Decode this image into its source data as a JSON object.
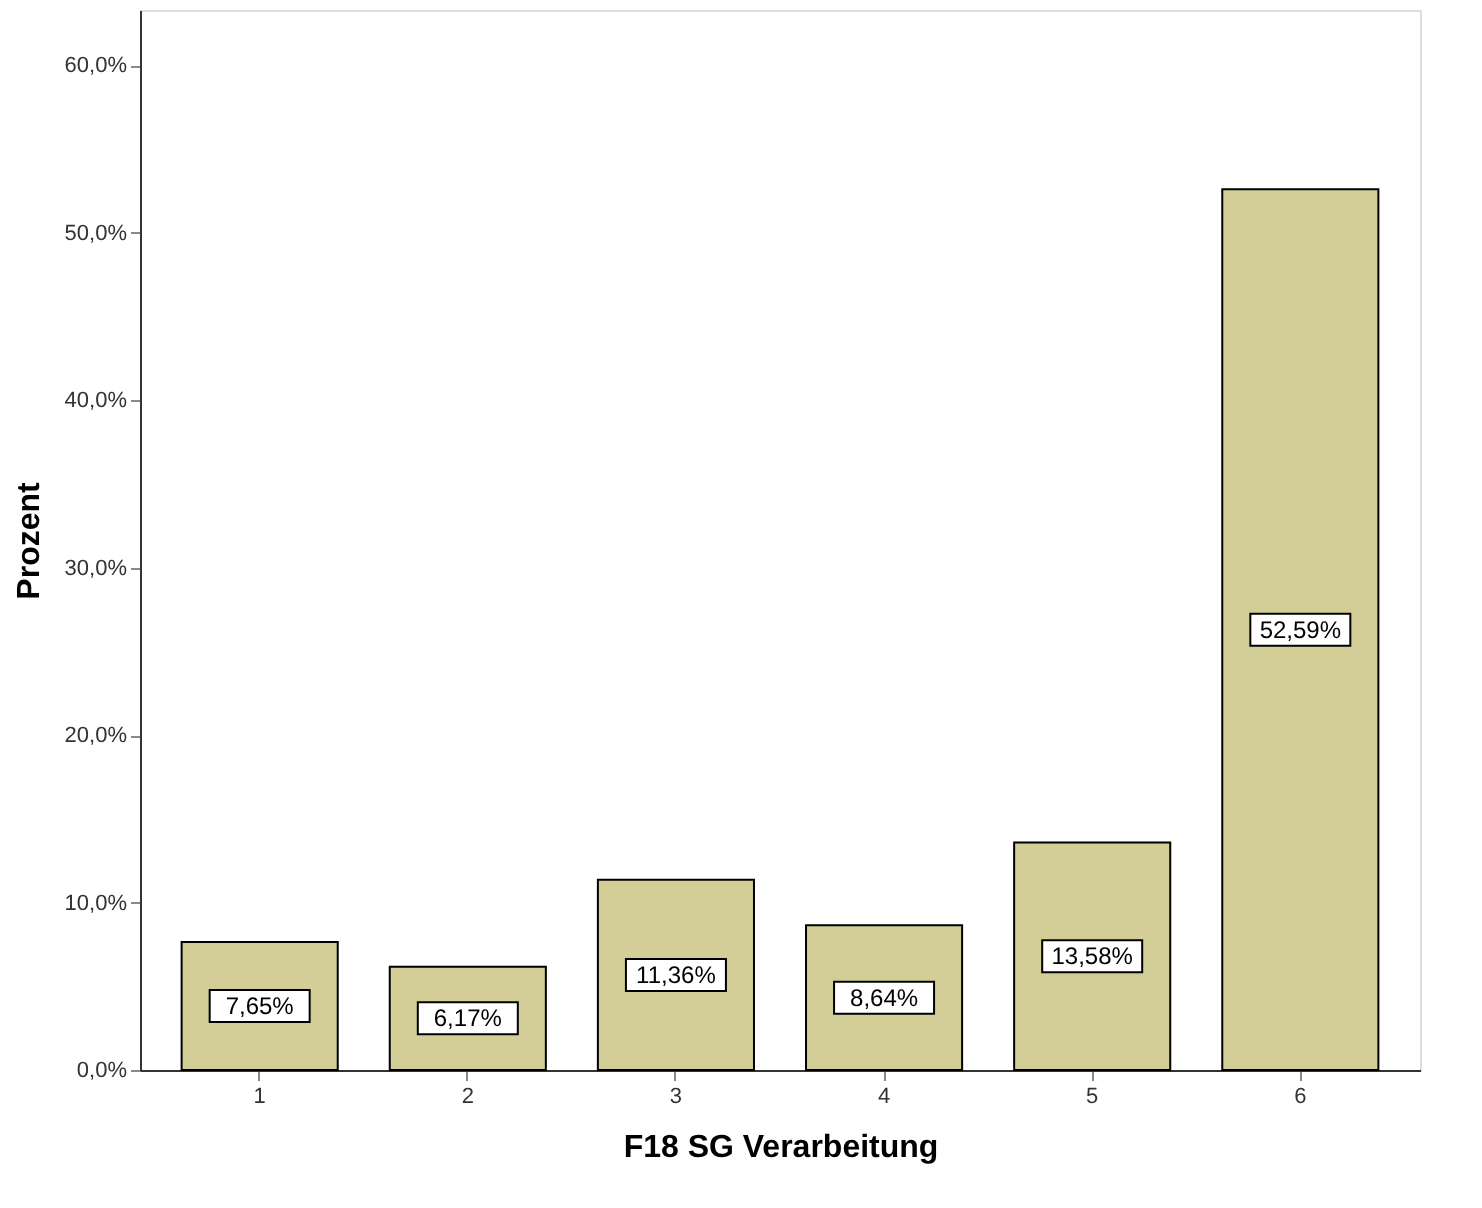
{
  "chart_data": {
    "type": "bar",
    "xlabel": "F18 SG Verarbeitung",
    "ylabel": "Prozent",
    "categories": [
      "1",
      "2",
      "3",
      "4",
      "5",
      "6"
    ],
    "values": [
      7.65,
      6.17,
      11.36,
      8.64,
      13.58,
      52.59
    ],
    "value_labels": [
      "7,65%",
      "6,17%",
      "11,36%",
      "8,64%",
      "13,58%",
      "52,59%"
    ],
    "color": "#d3ce97",
    "ylim": [
      0,
      63.3
    ],
    "yticks": [
      {
        "value": 0,
        "label": "0,0%"
      },
      {
        "value": 10,
        "label": "10,0%"
      },
      {
        "value": 20,
        "label": "20,0%"
      },
      {
        "value": 30,
        "label": "30,0%"
      },
      {
        "value": 40,
        "label": "40,0%"
      },
      {
        "value": 50,
        "label": "50,0%"
      },
      {
        "value": 60,
        "label": "60,0%"
      }
    ],
    "grid": false
  }
}
